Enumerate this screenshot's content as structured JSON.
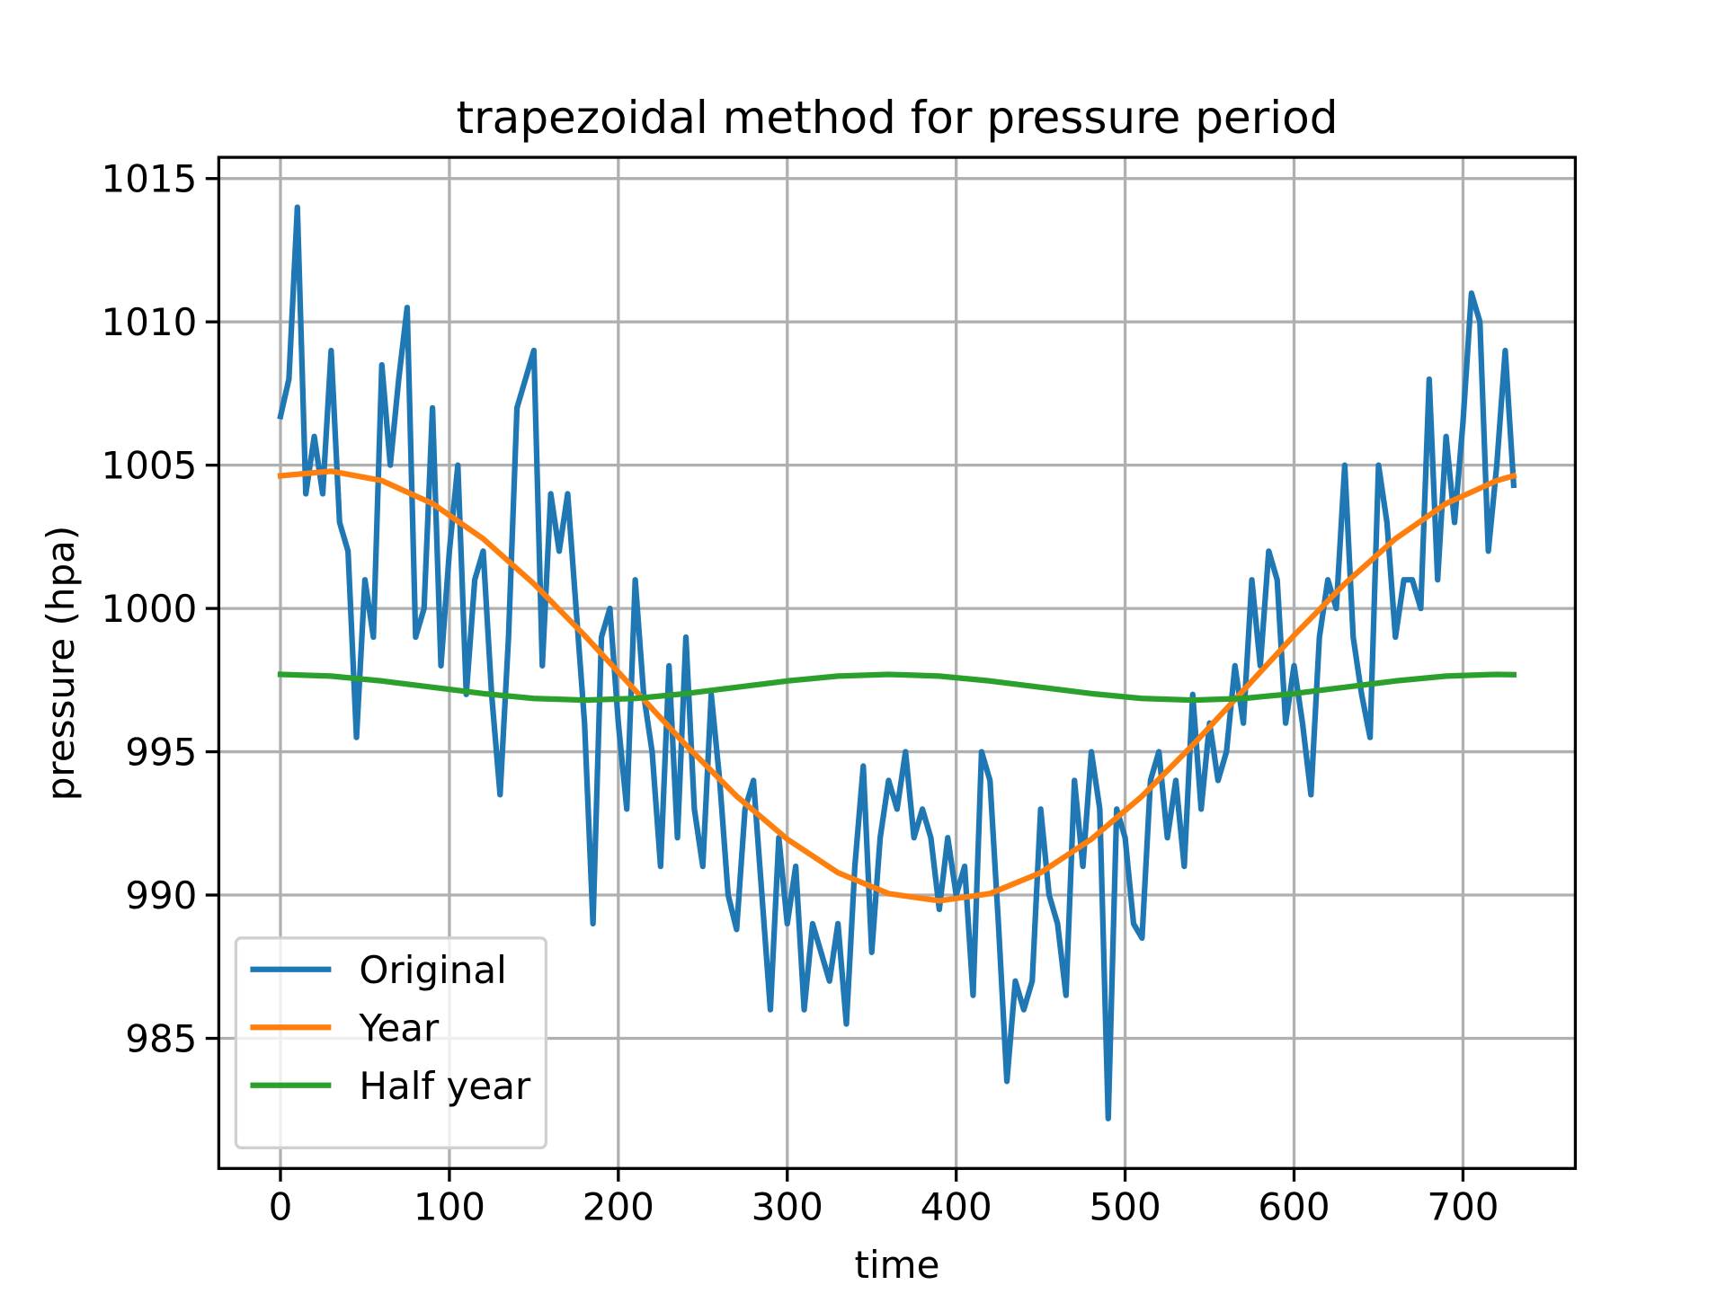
{
  "chart_data": {
    "type": "line",
    "title": "trapezoidal method for pressure period",
    "x_label": "time",
    "y_label": "pressure (hpa)",
    "xlim": [
      -36.5,
      766.5
    ],
    "ylim": [
      980.46,
      1015.74
    ],
    "xticks": [
      0,
      100,
      200,
      300,
      400,
      500,
      600,
      700
    ],
    "yticks": [
      985,
      990,
      995,
      1000,
      1005,
      1010,
      1015
    ],
    "grid": true,
    "legend": "lower left",
    "series": [
      {
        "name": "Original",
        "color": "#1f77b4",
        "x": [
          0,
          5,
          10,
          15,
          20,
          25,
          30,
          35,
          40,
          45,
          50,
          55,
          60,
          65,
          70,
          75,
          80,
          85,
          90,
          95,
          100,
          105,
          110,
          115,
          120,
          125,
          130,
          135,
          140,
          145,
          150,
          155,
          160,
          165,
          170,
          175,
          180,
          185,
          190,
          195,
          200,
          205,
          210,
          215,
          220,
          225,
          230,
          235,
          240,
          245,
          250,
          255,
          260,
          265,
          270,
          275,
          280,
          285,
          290,
          295,
          300,
          305,
          310,
          315,
          320,
          325,
          330,
          335,
          340,
          345,
          350,
          355,
          360,
          365,
          370,
          375,
          380,
          385,
          390,
          395,
          400,
          405,
          410,
          415,
          420,
          425,
          430,
          435,
          440,
          445,
          450,
          455,
          460,
          465,
          470,
          475,
          480,
          485,
          490,
          495,
          500,
          505,
          510,
          515,
          520,
          525,
          530,
          535,
          540,
          545,
          550,
          555,
          560,
          565,
          570,
          575,
          580,
          585,
          590,
          595,
          600,
          605,
          610,
          615,
          620,
          625,
          630,
          635,
          640,
          645,
          650,
          655,
          660,
          665,
          670,
          675,
          680,
          685,
          690,
          695,
          700,
          705,
          710,
          715,
          720,
          725,
          730
        ],
        "values": [
          1006.7,
          1008,
          1014,
          1004,
          1006,
          1004,
          1009,
          1003,
          1002,
          995.5,
          1001,
          999,
          1008.5,
          1005,
          1008,
          1010.5,
          999,
          1000,
          1007,
          998,
          1002,
          1005,
          997,
          1001,
          1002,
          997,
          993.5,
          999,
          1007,
          1008,
          1009,
          998,
          1004,
          1002,
          1004,
          1000,
          996,
          989,
          999,
          1000,
          996,
          993,
          1001,
          997,
          995,
          991,
          998,
          992,
          999,
          993,
          991,
          997,
          994,
          990,
          988.8,
          993,
          994,
          990,
          986,
          992,
          989,
          991,
          986,
          989,
          988,
          987,
          989,
          985.5,
          991,
          994.5,
          988,
          992,
          994,
          993,
          995,
          992,
          993,
          992,
          989.5,
          992,
          990,
          991,
          986.5,
          995,
          994,
          989,
          983.5,
          987,
          986,
          987,
          993,
          990,
          989,
          986.5,
          994,
          991,
          995,
          993,
          982.2,
          993,
          992,
          989,
          988.5,
          994,
          995,
          992,
          994,
          991,
          997,
          993,
          996,
          994,
          995,
          998,
          996,
          1001,
          998,
          1002,
          1001,
          996,
          998,
          996,
          993.5,
          999,
          1001,
          1000,
          1005,
          999,
          997,
          995.5,
          1005,
          1003,
          999,
          1001,
          1001,
          1000,
          1008,
          1001,
          1006,
          1003,
          1006.5,
          1011,
          1010,
          1002,
          1005,
          1009,
          1004.3
        ]
      },
      {
        "name": "Year",
        "color": "#ff7f0e",
        "x": [
          0,
          30,
          60,
          90,
          120,
          150,
          180,
          210,
          240,
          270,
          300,
          330,
          360,
          390,
          420,
          450,
          480,
          510,
          540,
          570,
          600,
          630,
          660,
          690,
          720,
          730
        ],
        "values": [
          1004.63,
          1004.79,
          1004.46,
          1003.66,
          1002.43,
          1000.86,
          999.06,
          997.14,
          995.23,
          993.45,
          991.95,
          990.78,
          990.05,
          989.8,
          990.05,
          990.78,
          991.95,
          993.45,
          995.23,
          997.14,
          999.06,
          1000.86,
          1002.43,
          1003.66,
          1004.46,
          1004.63
        ]
      },
      {
        "name": "Half year",
        "color": "#2ca02c",
        "x": [
          0,
          30,
          60,
          90,
          120,
          150,
          180,
          210,
          240,
          270,
          300,
          330,
          360,
          390,
          420,
          450,
          480,
          510,
          540,
          570,
          600,
          630,
          660,
          690,
          720,
          730
        ],
        "values": [
          997.7,
          997.64,
          997.47,
          997.25,
          997.03,
          996.86,
          996.8,
          996.86,
          997.03,
          997.25,
          997.47,
          997.64,
          997.7,
          997.64,
          997.47,
          997.25,
          997.03,
          996.86,
          996.8,
          996.86,
          997.03,
          997.25,
          997.47,
          997.64,
          997.7,
          997.69
        ]
      }
    ]
  }
}
